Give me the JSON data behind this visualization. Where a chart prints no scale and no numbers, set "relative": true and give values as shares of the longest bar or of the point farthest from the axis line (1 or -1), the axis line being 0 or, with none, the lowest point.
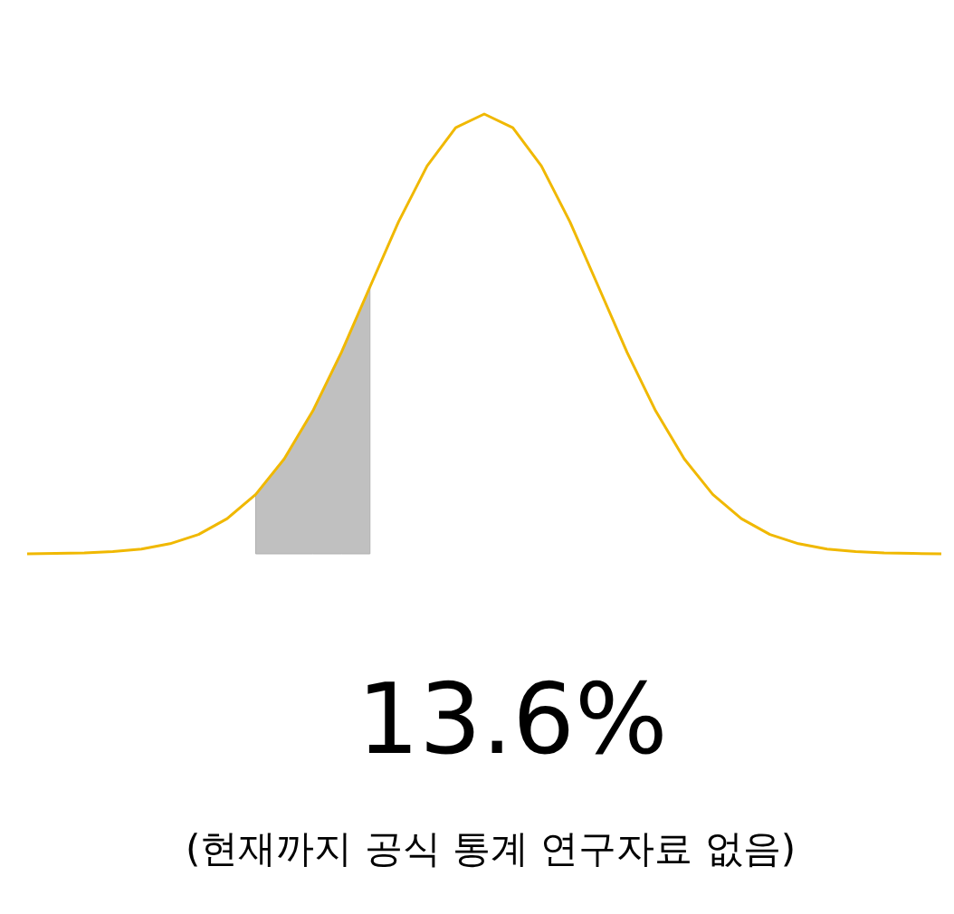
{
  "chart_data": {
    "type": "line",
    "relative": true,
    "categories": [
      null,
      null,
      null,
      null,
      null,
      null,
      null,
      null,
      null,
      null,
      null,
      null,
      null,
      null,
      null,
      null,
      null,
      null,
      null,
      null,
      null,
      null,
      null,
      null,
      null,
      null,
      null,
      null,
      null,
      null,
      null,
      null,
      null
    ],
    "series": [
      {
        "type": "line",
        "color": "#f0b800",
        "values": [
          0,
          0.001,
          0.002,
          0.005,
          0.011,
          0.023,
          0.044,
          0.08,
          0.135,
          0.216,
          0.325,
          0.458,
          0.607,
          0.755,
          0.882,
          0.969,
          1,
          0.969,
          0.882,
          0.755,
          0.607,
          0.458,
          0.325,
          0.216,
          0.135,
          0.08,
          0.044,
          0.023,
          0.011,
          0.005,
          0.002,
          0.001,
          0
        ]
      },
      {
        "type": "area",
        "color": "#c0c0c0",
        "values": [
          null,
          null,
          null,
          null,
          null,
          null,
          null,
          null,
          0.135,
          0.216,
          0.325,
          0.458,
          0.607,
          null,
          null,
          null,
          null,
          null,
          null,
          null,
          null,
          null,
          null,
          null,
          null,
          null,
          null,
          null,
          null,
          null,
          null,
          null,
          null
        ]
      }
    ],
    "annotations": [
      "13.6%",
      "(현재까지 공식 통계 연구자료 없음)"
    ]
  }
}
